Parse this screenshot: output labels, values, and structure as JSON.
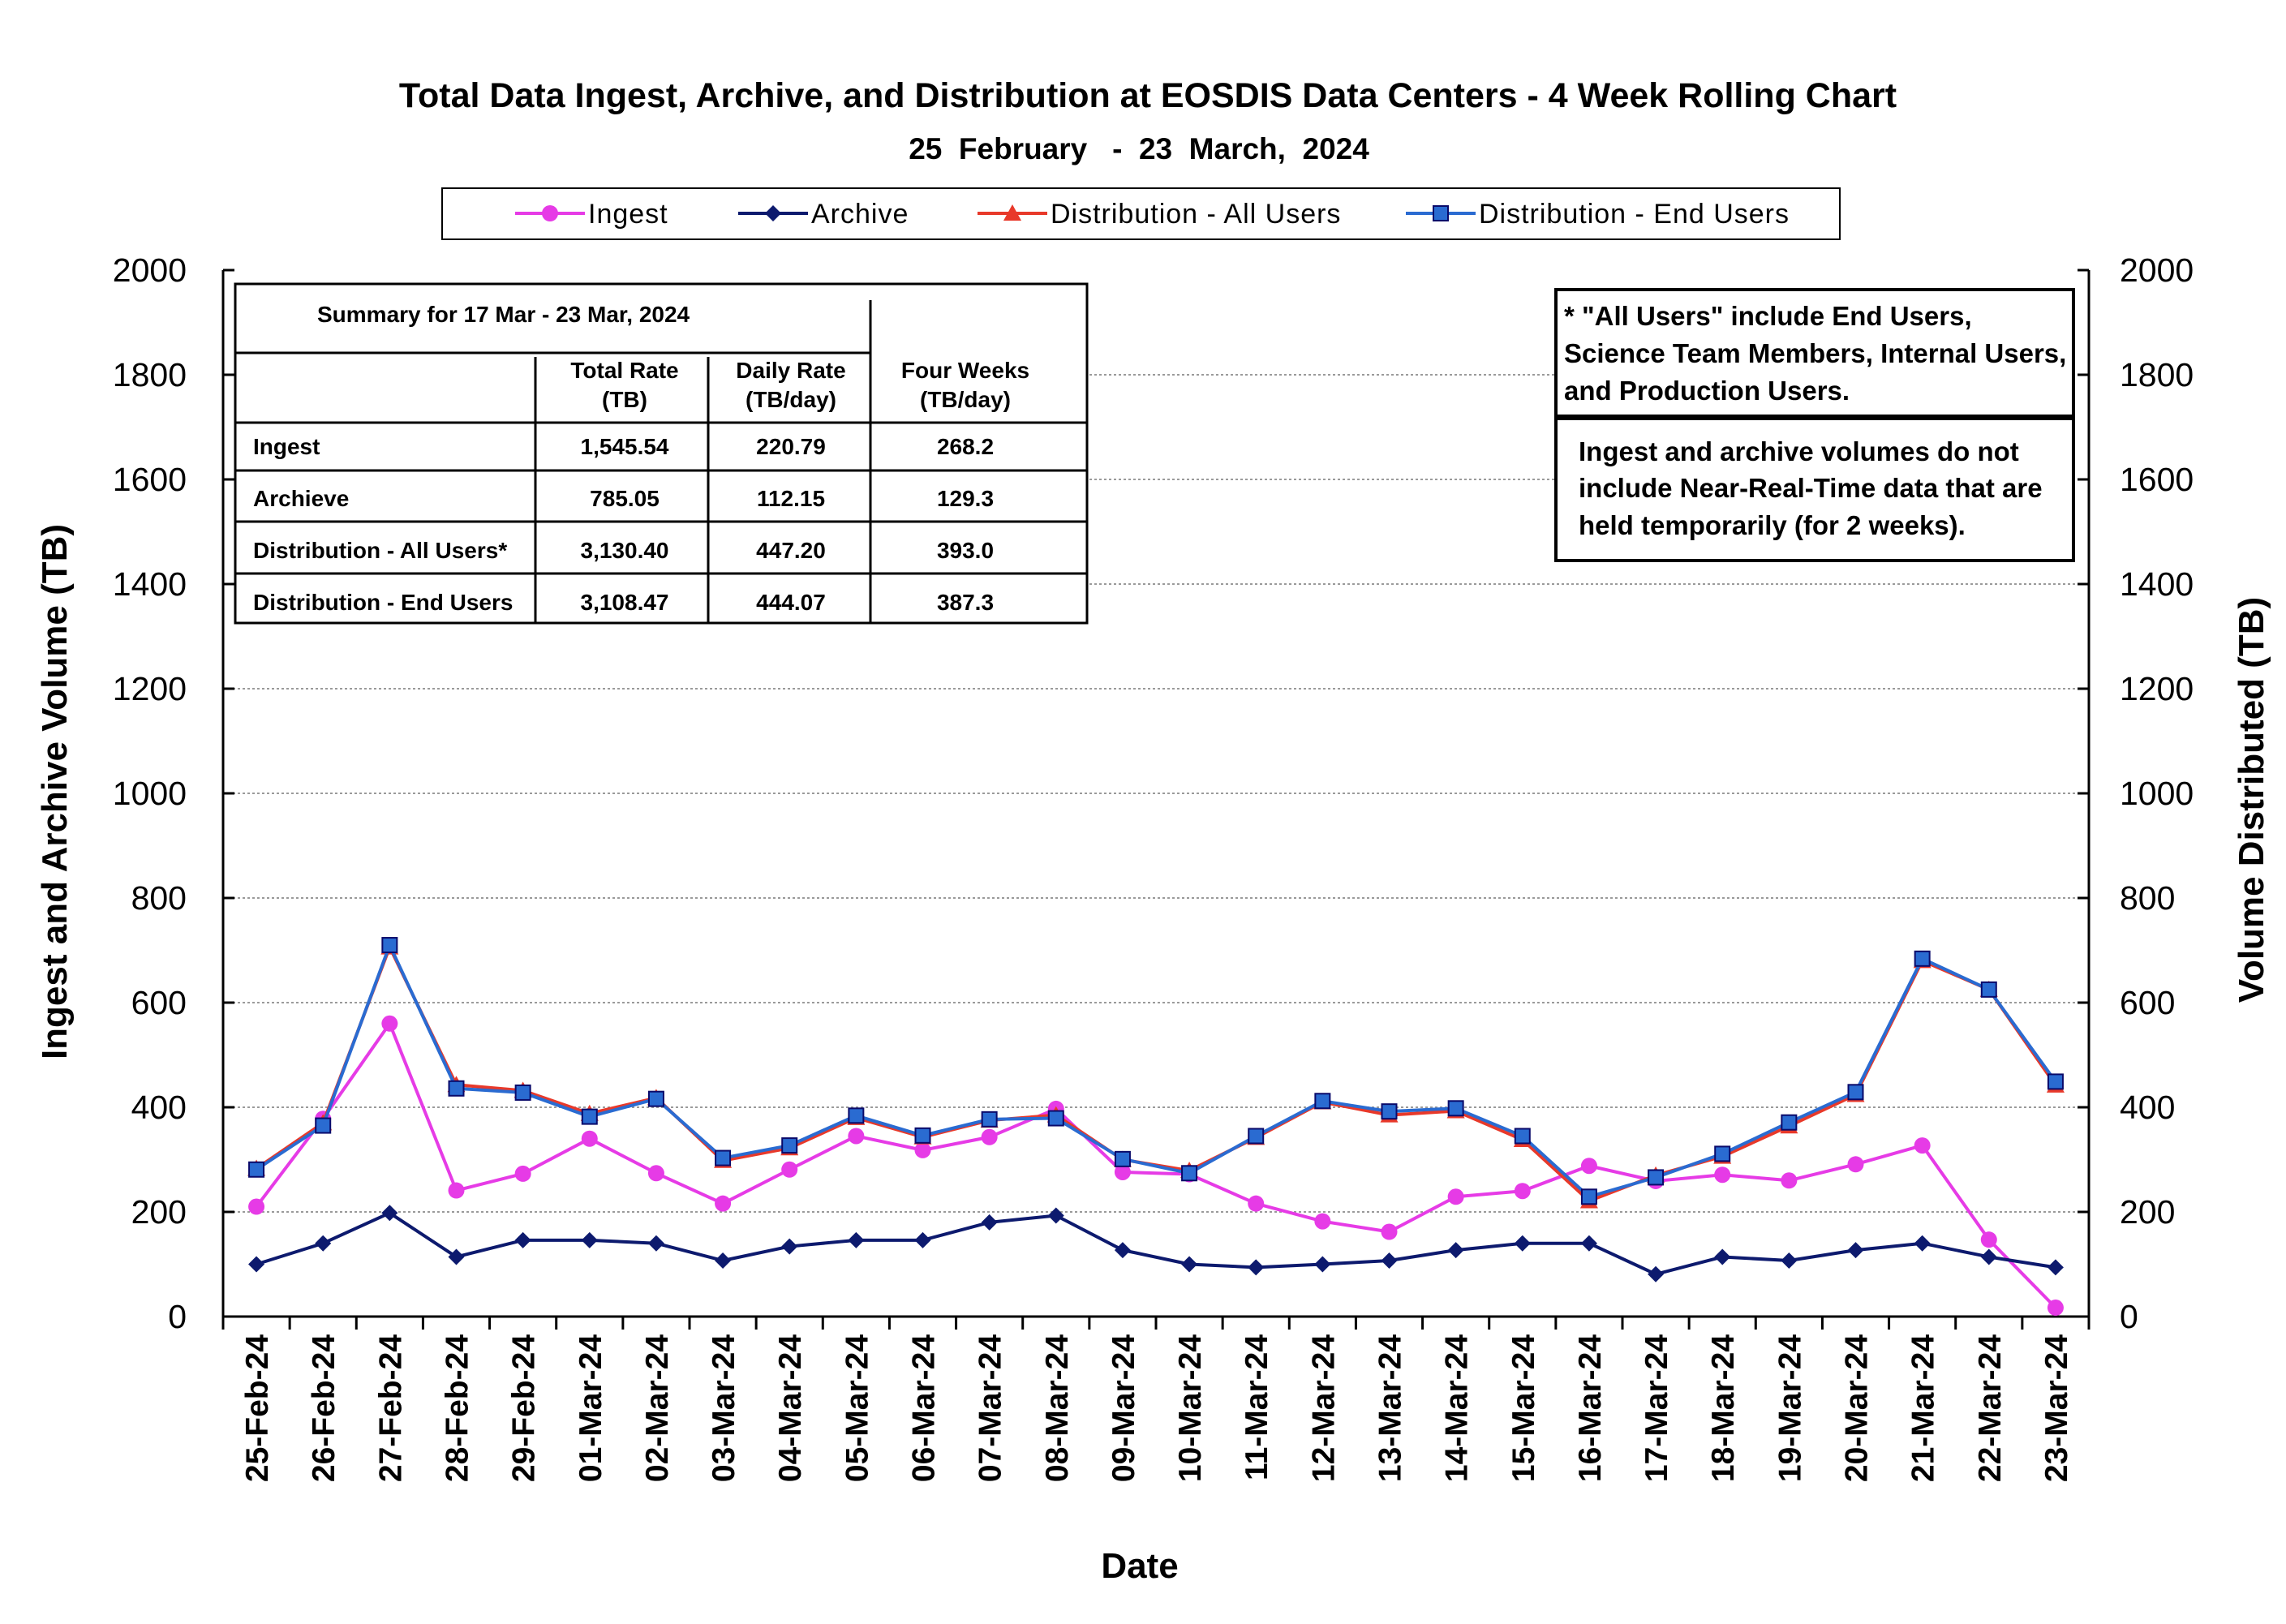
{
  "chart_data": {
    "type": "line",
    "title": "Total Data Ingest, Archive, and  Distribution at EOSDIS Data Centers - 4 Week Rolling Chart",
    "subtitle": "25  February   -  23  March,  2024",
    "xlabel": "Date",
    "ylabel": "Ingest and Archive Volume (TB)",
    "y2label": "Volume Distributed (TB)",
    "ylim": [
      0,
      2000
    ],
    "y2lim": [
      0,
      2000
    ],
    "yticks": [
      "0",
      "200",
      "400",
      "600",
      "800",
      "1000",
      "1200",
      "1400",
      "1600",
      "1800",
      "2000"
    ],
    "y2ticks": [
      "0",
      "200",
      "400",
      "600",
      "800",
      "1000",
      "1200",
      "1400",
      "1600",
      "1800",
      "2000"
    ],
    "grid": true,
    "legend_position": "top",
    "categories": [
      "25-Feb-24",
      "26-Feb-24",
      "27-Feb-24",
      "28-Feb-24",
      "29-Feb-24",
      "01-Mar-24",
      "02-Mar-24",
      "03-Mar-24",
      "04-Mar-24",
      "05-Mar-24",
      "06-Mar-24",
      "07-Mar-24",
      "08-Mar-24",
      "09-Mar-24",
      "10-Mar-24",
      "11-Mar-24",
      "12-Mar-24",
      "13-Mar-24",
      "14-Mar-24",
      "15-Mar-24",
      "16-Mar-24",
      "17-Mar-24",
      "18-Mar-24",
      "19-Mar-24",
      "20-Mar-24",
      "21-Mar-24",
      "22-Mar-24",
      "23-Mar-24"
    ],
    "series": [
      {
        "name": "Ingest",
        "color": "#e63be6",
        "marker": "circle",
        "axis": "left",
        "values": [
          210,
          378,
          560,
          241,
          273,
          340,
          274,
          216,
          281,
          345,
          318,
          343,
          397,
          276,
          272,
          216,
          182,
          162,
          229,
          240,
          288,
          259,
          271,
          260,
          291,
          327,
          147,
          17
        ]
      },
      {
        "name": "Archive",
        "color": "#0d1a6e",
        "marker": "diamond",
        "axis": "left",
        "values": [
          100,
          140,
          198,
          114,
          146,
          146,
          140,
          107,
          134,
          146,
          146,
          180,
          193,
          127,
          100,
          94,
          100,
          107,
          127,
          140,
          140,
          81,
          114,
          107,
          127,
          140,
          114,
          94
        ]
      },
      {
        "name": "Distribution - All Users",
        "color": "#e8392a",
        "marker": "triangle",
        "axis": "right",
        "values": [
          283,
          370,
          706,
          443,
          432,
          388,
          418,
          298,
          322,
          380,
          343,
          375,
          385,
          300,
          279,
          342,
          410,
          385,
          393,
          338,
          221,
          270,
          306,
          364,
          424,
          680,
          625,
          442
        ]
      },
      {
        "name": "Distribution - End Users",
        "color": "#2a6bd1",
        "marker": "square",
        "axis": "right",
        "values": [
          281,
          365,
          710,
          436,
          428,
          382,
          416,
          303,
          327,
          384,
          346,
          377,
          379,
          301,
          274,
          345,
          412,
          392,
          398,
          345,
          229,
          266,
          311,
          371,
          429,
          684,
          625,
          449
        ]
      }
    ],
    "summary_table": {
      "caption": "Summary  for  17  Mar   -  23  Mar,  2024",
      "headers": [
        [
          "Total Rate",
          "(TB)"
        ],
        [
          "Daily Rate",
          "(TB/day)"
        ],
        [
          "Four Weeks",
          "(TB/day)"
        ]
      ],
      "rows": [
        {
          "label": "Ingest",
          "values": [
            "1,545.54",
            "220.79",
            "268.2"
          ]
        },
        {
          "label": "Archieve",
          "values": [
            "785.05",
            "112.15",
            "129.3"
          ]
        },
        {
          "label": "Distribution - All Users*",
          "values": [
            "3,130.40",
            "447.20",
            "393.0"
          ]
        },
        {
          "label": "Distribution - End Users",
          "values": [
            "3,108.47",
            "444.07",
            "387.3"
          ]
        }
      ]
    },
    "notes": [
      [
        "  * \"All Users\" include End Users,",
        "Science Team Members,  Internal Users,",
        "and Production Users."
      ],
      [
        "Ingest and archive volumes do not",
        "include Near-Real-Time data that are",
        "held temporarily (for 2 weeks)."
      ]
    ]
  }
}
